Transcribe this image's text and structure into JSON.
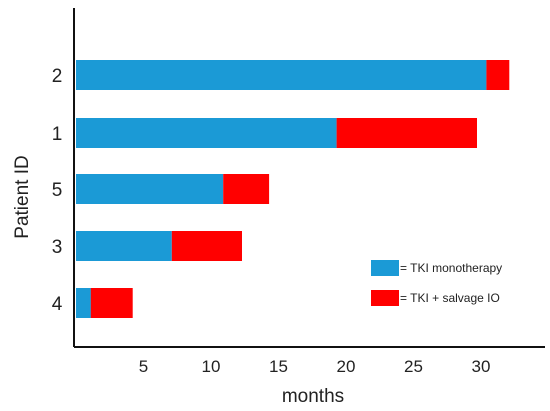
{
  "chart_data": {
    "type": "bar",
    "orientation": "horizontal",
    "stacked": true,
    "categories": [
      "2",
      "1",
      "5",
      "3",
      "4"
    ],
    "series": [
      {
        "name": "= TKI monotherapy",
        "color": "#1b9ad6",
        "values": [
          30.4,
          19.3,
          10.9,
          7.1,
          1.1
        ]
      },
      {
        "name": "= TKI + salvage IO",
        "color": "#ff0000",
        "values": [
          1.7,
          10.4,
          3.4,
          5.2,
          3.1
        ]
      }
    ],
    "x_ticks": [
      5,
      10,
      15,
      20,
      25,
      30
    ],
    "xlim": [
      0,
      35
    ],
    "xlabel": "months",
    "ylabel": "Patient ID",
    "grid": false,
    "legend_position": "bottom-right"
  }
}
